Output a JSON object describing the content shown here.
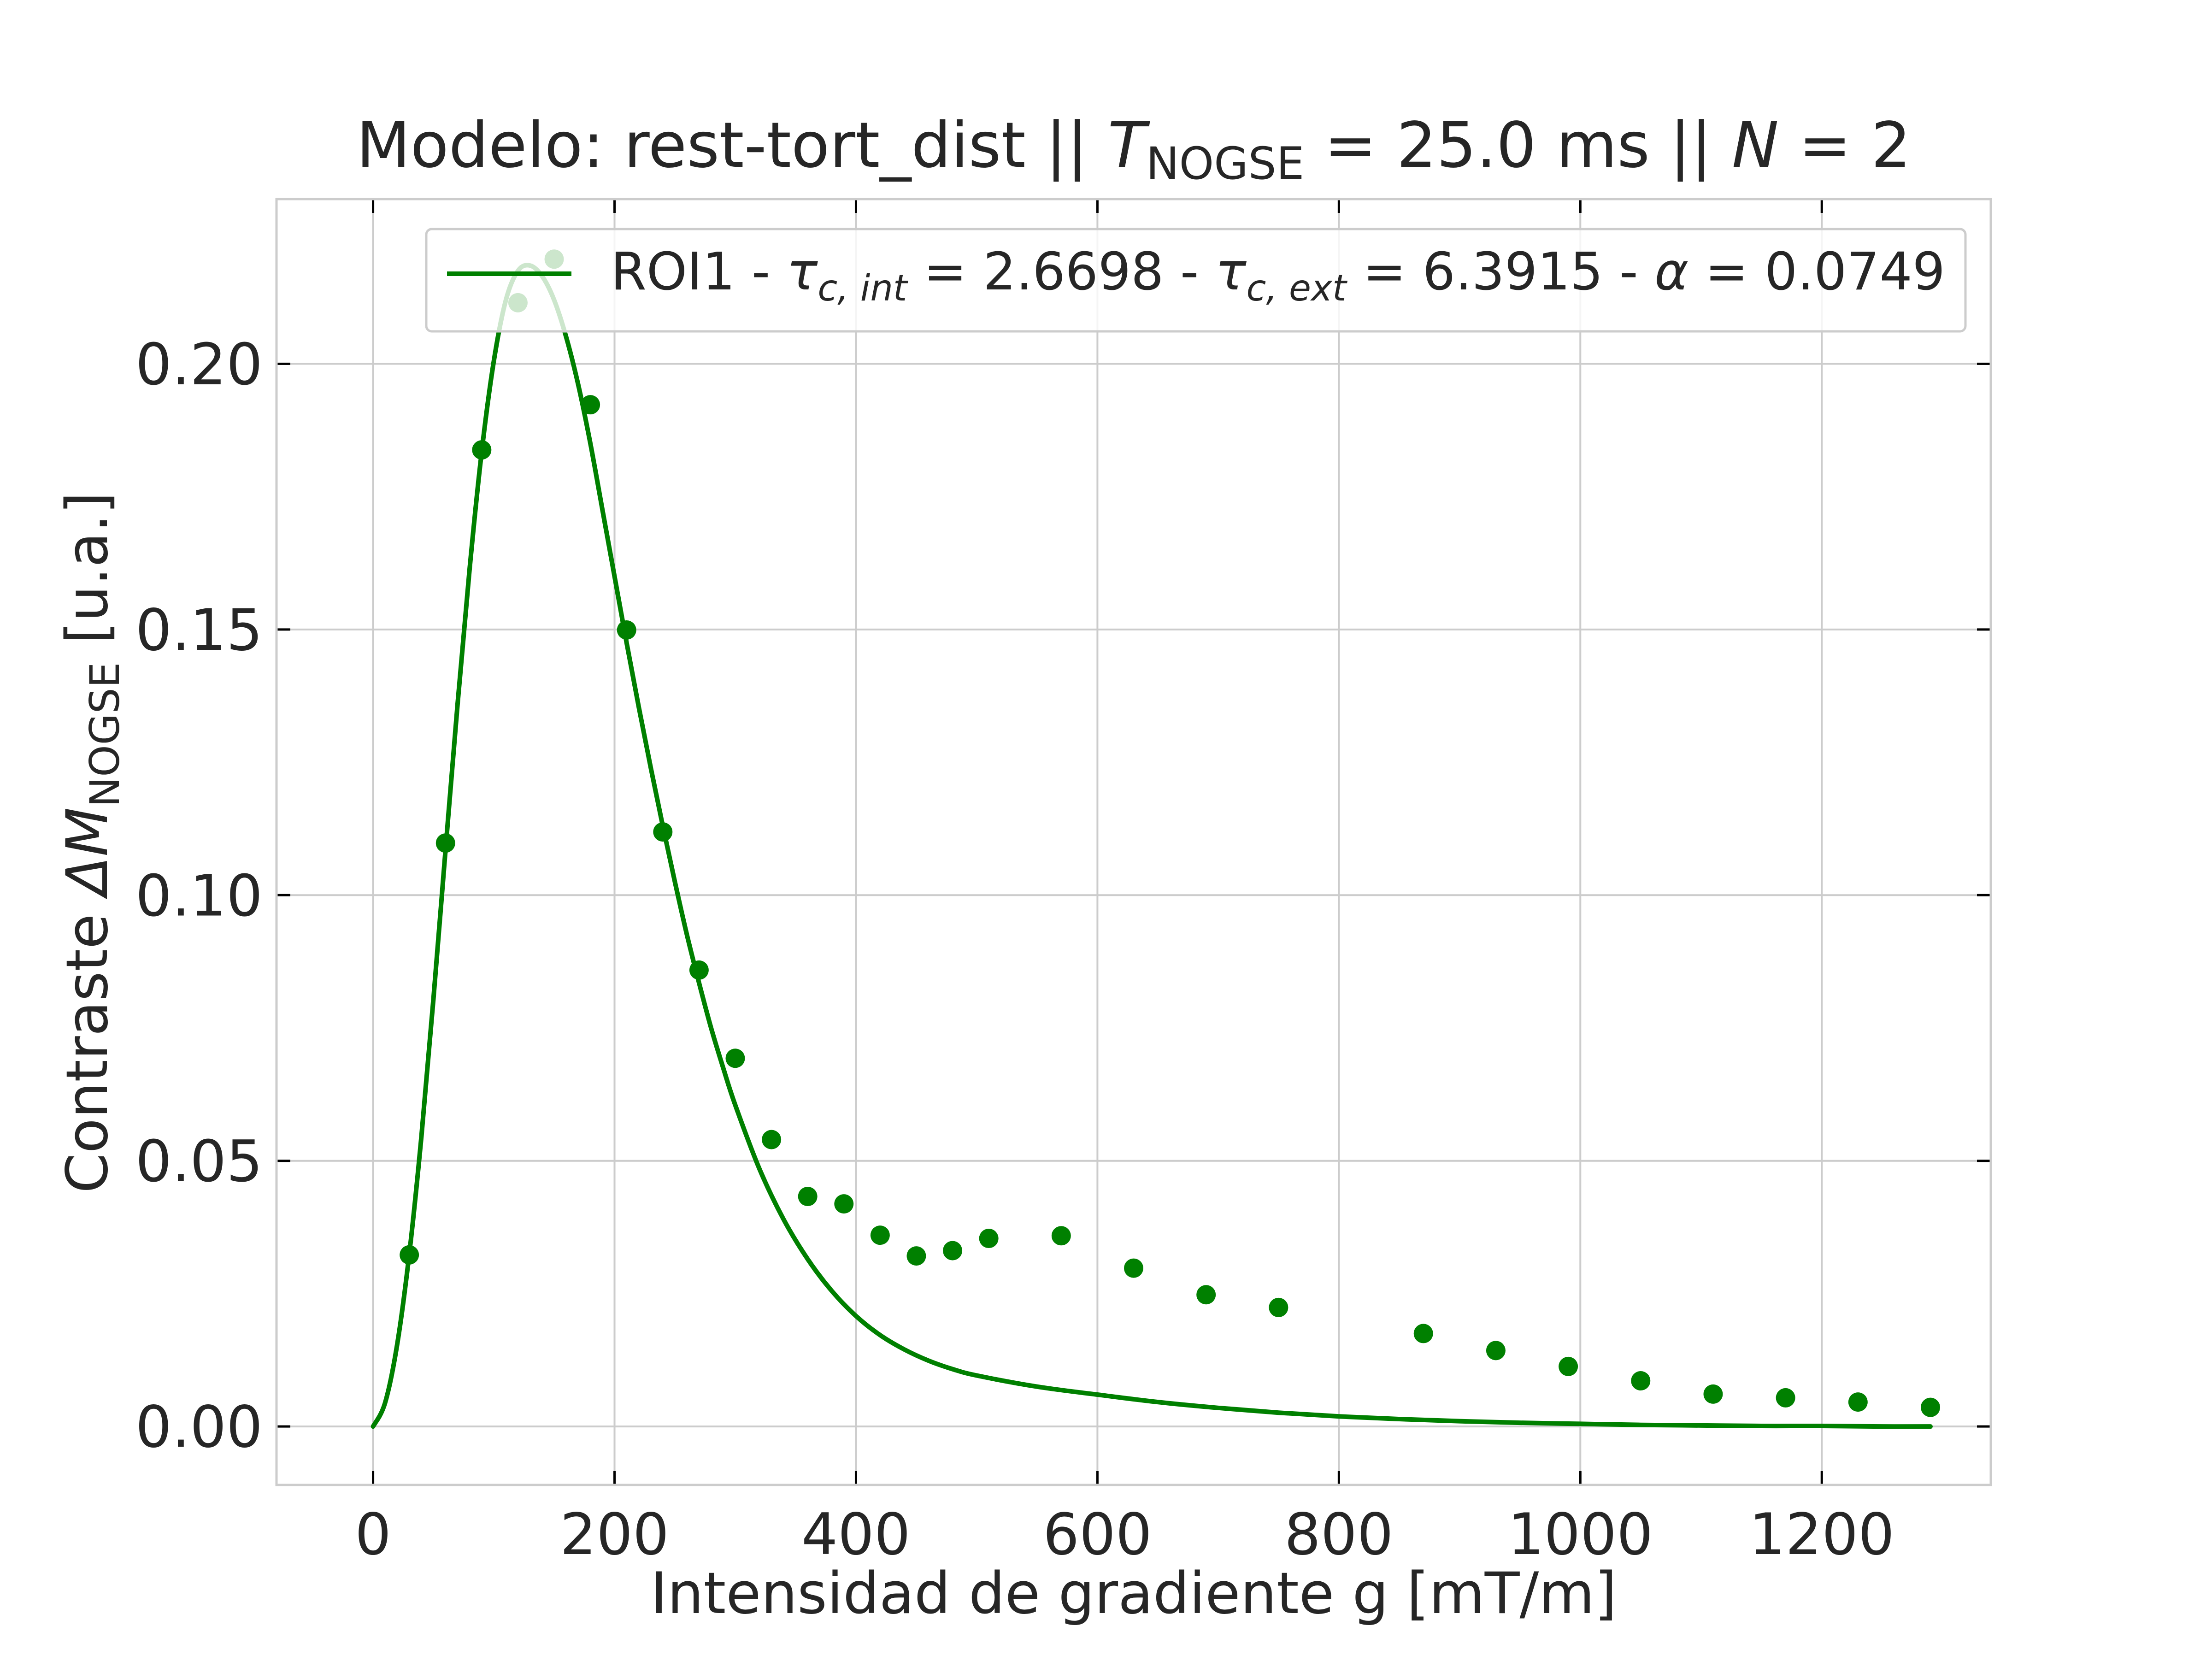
{
  "chart_data": {
    "type": "scatter",
    "title": {
      "prefix": "Modelo: rest-tort_dist || ",
      "T_symbol": "T",
      "T_subscript": "NOGSE",
      "T_value": " = 25.0 ms  ||  ",
      "N_symbol": "N",
      "N_value": " = 2"
    },
    "xlabel": "Intensidad de gradiente g [mT/m]",
    "ylabel": {
      "prefix": "Contraste ",
      "symbol": "ΔM",
      "subscript": "NOGSE",
      "suffix": " [u.a.]"
    },
    "xlim": [
      -80,
      1340
    ],
    "ylim": [
      -0.011,
      0.231
    ],
    "xticks": [
      0,
      200,
      400,
      600,
      800,
      1000,
      1200
    ],
    "xtick_labels": [
      "0",
      "200",
      "400",
      "600",
      "800",
      "1000",
      "1200"
    ],
    "yticks": [
      0.0,
      0.05,
      0.1,
      0.15,
      0.2
    ],
    "ytick_labels": [
      "0.00",
      "0.05",
      "0.10",
      "0.15",
      "0.20"
    ],
    "grid": true,
    "legend": {
      "placement": "top-right",
      "roi": "ROI1 - ",
      "tau": "τ",
      "tau_int_sub": "c, int",
      "tau_int_value": " = 2.6698 - ",
      "tau_ext_sub": "c, ext",
      "tau_ext_value": " = 6.3915 - ",
      "alpha": "α",
      "alpha_value": " = 0.0749"
    },
    "color": "#008000",
    "series": [
      {
        "kind": "points",
        "x": [
          30,
          60,
          90,
          120,
          150,
          180,
          210,
          240,
          270,
          300,
          330,
          360,
          390,
          420,
          450,
          480,
          510,
          570,
          630,
          690,
          750,
          870,
          930,
          990,
          1050,
          1110,
          1170,
          1230,
          1290
        ],
        "y": [
          0.0323,
          0.1098,
          0.1838,
          0.2115,
          0.2197,
          0.1923,
          0.1499,
          0.1119,
          0.0859,
          0.0693,
          0.054,
          0.0433,
          0.0419,
          0.036,
          0.0321,
          0.0331,
          0.0354,
          0.0359,
          0.0298,
          0.0248,
          0.0224,
          0.0175,
          0.0143,
          0.0113,
          0.0086,
          0.0061,
          0.0054,
          0.0046,
          0.0036
        ]
      },
      {
        "kind": "line",
        "x": [
          0,
          10,
          20,
          30,
          40,
          50,
          60,
          70,
          80,
          90,
          100,
          110,
          120,
          130,
          140,
          150,
          160,
          170,
          180,
          190,
          200,
          210,
          220,
          230,
          240,
          250,
          260,
          270,
          280,
          290,
          300,
          320,
          340,
          360,
          380,
          400,
          420,
          440,
          460,
          480,
          500,
          550,
          600,
          650,
          700,
          750,
          800,
          850,
          900,
          950,
          1000,
          1050,
          1100,
          1150,
          1200,
          1250,
          1290
        ],
        "y": [
          0.0,
          0.0045,
          0.0155,
          0.0325,
          0.0545,
          0.0805,
          0.1085,
          0.136,
          0.1615,
          0.1835,
          0.2005,
          0.212,
          0.2175,
          0.2185,
          0.2165,
          0.212,
          0.205,
          0.196,
          0.185,
          0.1725,
          0.16,
          0.1475,
          0.1355,
          0.124,
          0.113,
          0.1025,
          0.0925,
          0.0835,
          0.075,
          0.0675,
          0.0605,
          0.0485,
          0.039,
          0.0315,
          0.0255,
          0.0208,
          0.0172,
          0.0145,
          0.0124,
          0.0108,
          0.0096,
          0.0075,
          0.006,
          0.0046,
          0.0035,
          0.0026,
          0.0019,
          0.0014,
          0.001,
          0.0007,
          0.0005,
          0.0003,
          0.0002,
          0.0001,
          0.0001,
          0.0,
          0.0
        ]
      }
    ]
  }
}
